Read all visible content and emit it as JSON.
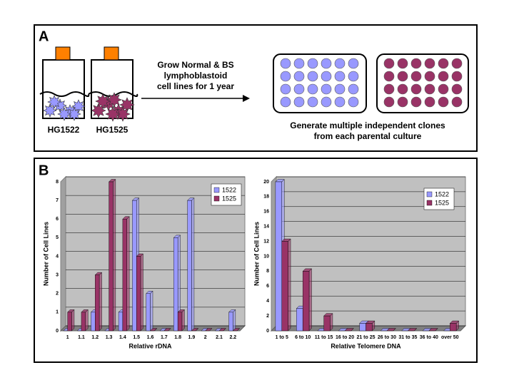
{
  "panel_a": {
    "label": "A",
    "cultures": [
      {
        "label": "HG1522",
        "color": "#9999ff"
      },
      {
        "label": "HG1525",
        "color": "#993366"
      }
    ],
    "arrow_text": [
      "Grow Normal & BS",
      "lymphoblastoid",
      "cell lines for 1 year"
    ],
    "caption": [
      "Generate multiple independent clones",
      "from each parental culture"
    ]
  },
  "panel_b": {
    "label": "B"
  },
  "chart_data": [
    {
      "type": "bar",
      "x_label": "Relative rDNA",
      "y_label": "Number of Cell Lines",
      "categories": [
        "1",
        "1.1",
        "1.2",
        "1.3",
        "1.4",
        "1.5",
        "1.6",
        "1.7",
        "1.8",
        "1.9",
        "2",
        "2.1",
        "2.2"
      ],
      "series": [
        {
          "name": "1522",
          "color": "#9999ff",
          "values": [
            0,
            0,
            1,
            0,
            1,
            7,
            2,
            0,
            5,
            7,
            0,
            0,
            1
          ]
        },
        {
          "name": "1525",
          "color": "#993366",
          "values": [
            1,
            1,
            3,
            8,
            6,
            4,
            0,
            0,
            1,
            0,
            0,
            0,
            0
          ]
        }
      ],
      "ylim": [
        0,
        8
      ],
      "yticks": [
        0,
        1,
        2,
        3,
        4,
        5,
        6,
        7,
        8
      ],
      "grid": true,
      "legend": "top-right"
    },
    {
      "type": "bar",
      "x_label": "Relative Telomere DNA",
      "y_label": "Number of Cell Lines",
      "categories": [
        "1 to 5",
        "6 to 10",
        "11 to 15",
        "16 to 20",
        "21 to 25",
        "26 to 30",
        "31 to 35",
        "36 to 40",
        "over 50"
      ],
      "series": [
        {
          "name": "1522",
          "color": "#9999ff",
          "values": [
            20,
            3,
            0,
            0,
            1,
            0,
            0,
            0,
            0
          ]
        },
        {
          "name": "1525",
          "color": "#993366",
          "values": [
            12,
            8,
            2,
            0,
            1,
            0,
            0,
            0,
            1
          ]
        }
      ],
      "ylim": [
        0,
        20
      ],
      "yticks": [
        0,
        2,
        4,
        6,
        8,
        10,
        12,
        14,
        16,
        18,
        20
      ],
      "grid": true,
      "legend": "top-right"
    }
  ]
}
